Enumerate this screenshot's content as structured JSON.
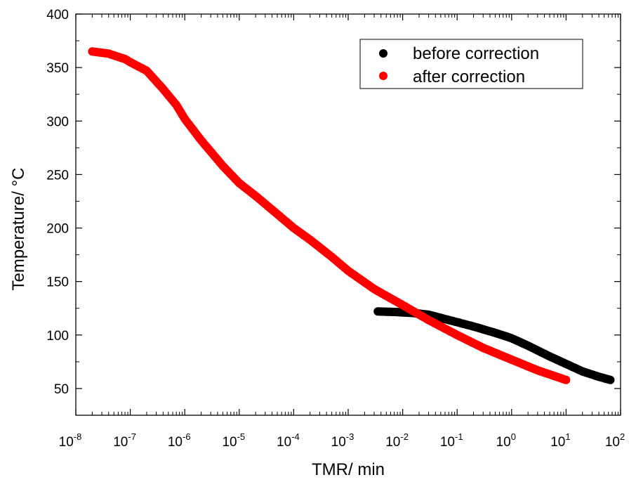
{
  "chart_data": {
    "type": "scatter",
    "xlabel": "TMR/ min",
    "ylabel": "Temperature/ °C",
    "xscale": "log",
    "xlim": [
      1e-08,
      100
    ],
    "ylim": [
      25,
      400
    ],
    "x_tick_values": [
      1e-08,
      1e-07,
      1e-06,
      1e-05,
      0.0001,
      0.001,
      0.01,
      0.1,
      1,
      10,
      100
    ],
    "x_tick_labels": [
      {
        "base": "10",
        "exp": "-8"
      },
      {
        "base": "10",
        "exp": "-7"
      },
      {
        "base": "10",
        "exp": "-6"
      },
      {
        "base": "10",
        "exp": "-5"
      },
      {
        "base": "10",
        "exp": "-4"
      },
      {
        "base": "10",
        "exp": "-3"
      },
      {
        "base": "10",
        "exp": "-2"
      },
      {
        "base": "10",
        "exp": "-1"
      },
      {
        "base": "10",
        "exp": "0"
      },
      {
        "base": "10",
        "exp": "1"
      },
      {
        "base": "10",
        "exp": "2"
      }
    ],
    "y_ticks": [
      50,
      100,
      150,
      200,
      250,
      300,
      350,
      400
    ],
    "grid": false,
    "legend_position": "top-right",
    "series": [
      {
        "name": "before correction",
        "color": "#000000",
        "points": [
          [
            0.0035,
            122
          ],
          [
            0.0075,
            121.5
          ],
          [
            0.011,
            121
          ],
          [
            0.016,
            120.5
          ],
          [
            0.02,
            120
          ],
          [
            0.03,
            119
          ],
          [
            0.05,
            116
          ],
          [
            0.1,
            112
          ],
          [
            0.2,
            108
          ],
          [
            0.5,
            102
          ],
          [
            1,
            97
          ],
          [
            2,
            90
          ],
          [
            5,
            80
          ],
          [
            10,
            73
          ],
          [
            20,
            66
          ],
          [
            40,
            61
          ],
          [
            65,
            58
          ]
        ]
      },
      {
        "name": "after correction",
        "color": "#ff0000",
        "points": [
          [
            2e-08,
            365
          ],
          [
            4e-08,
            363
          ],
          [
            6e-08,
            360
          ],
          [
            8e-08,
            358
          ],
          [
            1e-07,
            355
          ],
          [
            2e-07,
            347
          ],
          [
            4e-07,
            330
          ],
          [
            7e-07,
            315
          ],
          [
            1e-06,
            302
          ],
          [
            2e-06,
            282
          ],
          [
            5e-06,
            258
          ],
          [
            1e-05,
            242
          ],
          [
            2e-05,
            230
          ],
          [
            5e-05,
            213
          ],
          [
            0.0001,
            200
          ],
          [
            0.0002,
            189
          ],
          [
            0.0005,
            173
          ],
          [
            0.001,
            160
          ],
          [
            0.003,
            143
          ],
          [
            0.01,
            128
          ],
          [
            0.03,
            114
          ],
          [
            0.1,
            100
          ],
          [
            0.3,
            88
          ],
          [
            1,
            77
          ],
          [
            3,
            67
          ],
          [
            10,
            58
          ]
        ]
      }
    ]
  }
}
